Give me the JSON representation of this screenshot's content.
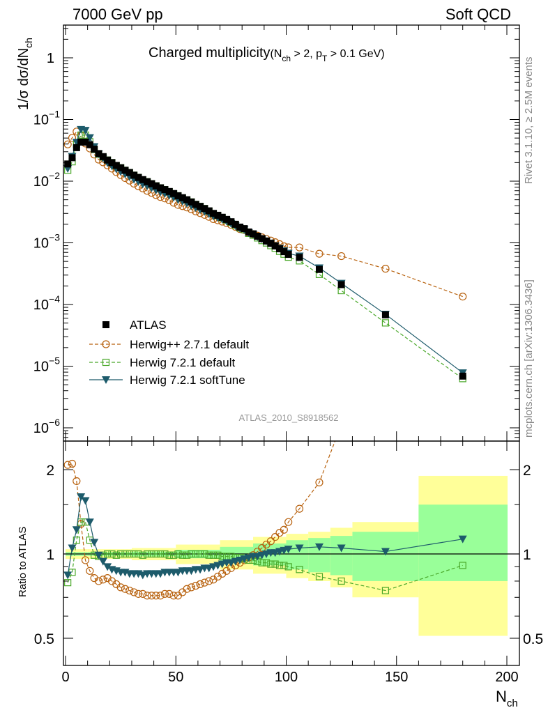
{
  "header": {
    "left": "7000 GeV pp",
    "right": "Soft QCD"
  },
  "side": {
    "rivet": "Rivet 3.1.10, ≥ 2.5M events",
    "mcplots": "mcplots.cern.ch [arXiv:1306.3436]"
  },
  "plot": {
    "title_main": "Charged multiplicity",
    "title_cond_a": "(N",
    "title_cond_a_sub": "ch",
    "title_cond_b": " > 2, p",
    "title_cond_b_sub": "T",
    "title_cond_c": " > 0.1 GeV)",
    "ylabel": "1/σ dσ/dN",
    "ylabel_sub": "ch",
    "ratio_ylabel": "Ratio to ATLAS",
    "xlabel": "N",
    "xlabel_sub": "ch",
    "analysis_id": "ATLAS_2010_S8918562",
    "main_yticks": [
      {
        "base": "1",
        "exp": ""
      },
      {
        "base": "10",
        "exp": "−1"
      },
      {
        "base": "10",
        "exp": "−2"
      },
      {
        "base": "10",
        "exp": "−3"
      },
      {
        "base": "10",
        "exp": "−4"
      },
      {
        "base": "10",
        "exp": "−5"
      },
      {
        "base": "10",
        "exp": "−6"
      }
    ],
    "ratio_yticks": [
      "2",
      "1",
      "0.5"
    ],
    "xticks": [
      "0",
      "50",
      "100",
      "150",
      "200"
    ]
  },
  "legend": [
    {
      "label": "ATLAS",
      "color": "#000000",
      "marker": "square-filled"
    },
    {
      "label": "Herwig++ 2.7.1 default",
      "color": "#b8620f",
      "marker": "circle-open"
    },
    {
      "label": "Herwig 7.2.1 default",
      "color": "#4aa82a",
      "marker": "square-open"
    },
    {
      "label": "Herwig 7.2.1 softTune",
      "color": "#1d5b6b",
      "marker": "triangle-down"
    }
  ],
  "chart_data": {
    "type": "scatter",
    "x_range": [
      0,
      200
    ],
    "main_y_range": [
      5e-07,
      3.5
    ],
    "main_y_log": true,
    "ratio_y_range": [
      0.4,
      2.4
    ],
    "ratio_y_log": true,
    "bands": {
      "color_outer": "#ffff99",
      "color_inner": "#99ff99",
      "bins": [
        {
          "x0": 0,
          "x1": 10,
          "inner": 0.015,
          "outer": 0.04
        },
        {
          "x0": 10,
          "x1": 30,
          "inner": 0.015,
          "outer": 0.04
        },
        {
          "x0": 30,
          "x1": 50,
          "inner": 0.02,
          "outer": 0.05
        },
        {
          "x0": 50,
          "x1": 70,
          "inner": 0.035,
          "outer": 0.08
        },
        {
          "x0": 70,
          "x1": 85,
          "inner": 0.06,
          "outer": 0.12
        },
        {
          "x0": 85,
          "x1": 100,
          "inner": 0.09,
          "outer": 0.15
        },
        {
          "x0": 100,
          "x1": 110,
          "inner": 0.12,
          "outer": 0.18
        },
        {
          "x0": 110,
          "x1": 120,
          "inner": 0.14,
          "outer": 0.2
        },
        {
          "x0": 120,
          "x1": 130,
          "inner": 0.16,
          "outer": 0.24
        },
        {
          "x0": 130,
          "x1": 160,
          "inner": 0.2,
          "outer": 0.3
        },
        {
          "x0": 160,
          "x1": 201,
          "inner": 0.2,
          "outer": 0.49,
          "outer_hi": 0.9,
          "inner_hi": 0.5
        }
      ]
    },
    "series": [
      {
        "name": "ATLAS",
        "x": [
          1,
          3,
          5,
          7,
          9,
          11,
          13,
          15,
          17,
          19,
          21,
          23,
          25,
          27,
          29,
          31,
          33,
          35,
          37,
          39,
          41,
          43,
          45,
          47,
          49,
          51,
          53,
          55,
          57,
          59,
          61,
          63,
          65,
          67,
          69,
          71,
          73,
          75,
          77,
          79,
          81,
          83,
          85,
          87,
          89,
          91,
          93,
          95,
          97,
          99,
          101,
          106,
          115,
          125,
          145,
          180
        ],
        "y": [
          0.019,
          0.024,
          0.035,
          0.043,
          0.043,
          0.039,
          0.033,
          0.028,
          0.025,
          0.022,
          0.02,
          0.018,
          0.0165,
          0.015,
          0.0138,
          0.0125,
          0.0115,
          0.0106,
          0.0098,
          0.0091,
          0.0084,
          0.0078,
          0.0073,
          0.0068,
          0.0063,
          0.0058,
          0.0054,
          0.005,
          0.0046,
          0.0042,
          0.0039,
          0.0036,
          0.0033,
          0.003,
          0.0028,
          0.0026,
          0.0024,
          0.0022,
          0.002,
          0.0018,
          0.0017,
          0.0015,
          0.0014,
          0.00128,
          0.00117,
          0.00107,
          0.00098,
          0.00089,
          0.0008,
          0.00072,
          0.00065,
          0.00058,
          0.00037,
          0.00021,
          6.8e-05,
          6.9e-06
        ]
      },
      {
        "name": "Herwig++ 2.7.1 default",
        "x": [
          1,
          3,
          5,
          7,
          9,
          11,
          13,
          15,
          17,
          19,
          21,
          23,
          25,
          27,
          29,
          31,
          33,
          35,
          37,
          39,
          41,
          43,
          45,
          47,
          49,
          51,
          53,
          55,
          57,
          59,
          61,
          63,
          65,
          67,
          69,
          71,
          73,
          75,
          77,
          79,
          81,
          83,
          85,
          87,
          89,
          91,
          93,
          95,
          97,
          99,
          101,
          106,
          115,
          125,
          145,
          180
        ],
        "ratio": [
          2.08,
          2.1,
          1.82,
          1.28,
          0.95,
          0.87,
          0.82,
          0.8,
          0.81,
          0.82,
          0.8,
          0.78,
          0.76,
          0.75,
          0.74,
          0.73,
          0.72,
          0.72,
          0.71,
          0.71,
          0.71,
          0.71,
          0.72,
          0.72,
          0.71,
          0.71,
          0.73,
          0.75,
          0.76,
          0.77,
          0.78,
          0.79,
          0.8,
          0.81,
          0.83,
          0.85,
          0.87,
          0.89,
          0.91,
          0.93,
          0.95,
          0.97,
          0.99,
          1.02,
          1.05,
          1.08,
          1.11,
          1.15,
          1.19,
          1.22,
          1.3,
          1.45,
          1.8,
          2.9,
          5.6,
          19.5
        ]
      },
      {
        "name": "Herwig 7.2.1 default",
        "x": [
          1,
          3,
          5,
          7,
          9,
          11,
          13,
          15,
          17,
          19,
          21,
          23,
          25,
          27,
          29,
          31,
          33,
          35,
          37,
          39,
          41,
          43,
          45,
          47,
          49,
          51,
          53,
          55,
          57,
          59,
          61,
          63,
          65,
          67,
          69,
          71,
          73,
          75,
          77,
          79,
          81,
          83,
          85,
          87,
          89,
          91,
          93,
          95,
          97,
          99,
          101,
          106,
          115,
          125,
          145,
          180
        ],
        "ratio": [
          0.79,
          0.86,
          1.12,
          1.3,
          1.3,
          1.12,
          0.99,
          0.98,
          0.99,
          1.0,
          1.0,
          0.99,
          1.0,
          1.0,
          1.0,
          1.0,
          1.0,
          0.99,
          1.0,
          1.0,
          1.0,
          1.0,
          1.0,
          0.99,
          0.99,
          1.0,
          0.99,
          0.99,
          1.0,
          1.0,
          1.0,
          1.0,
          0.99,
          0.99,
          0.99,
          0.98,
          0.98,
          0.98,
          0.97,
          0.97,
          0.96,
          0.95,
          0.95,
          0.94,
          0.93,
          0.93,
          0.92,
          0.92,
          0.91,
          0.91,
          0.9,
          0.88,
          0.83,
          0.8,
          0.74,
          0.91
        ]
      },
      {
        "name": "Herwig 7.2.1 softTune",
        "x": [
          1,
          3,
          5,
          7,
          9,
          11,
          13,
          15,
          17,
          19,
          21,
          23,
          25,
          27,
          29,
          31,
          33,
          35,
          37,
          39,
          41,
          43,
          45,
          47,
          49,
          51,
          53,
          55,
          57,
          59,
          61,
          63,
          65,
          67,
          69,
          71,
          73,
          75,
          77,
          79,
          81,
          83,
          85,
          87,
          89,
          91,
          93,
          95,
          97,
          99,
          101,
          106,
          115,
          125,
          145,
          180
        ],
        "ratio": [
          0.84,
          1.05,
          1.22,
          1.6,
          1.55,
          1.3,
          1.1,
          0.99,
          0.94,
          0.9,
          0.88,
          0.87,
          0.86,
          0.86,
          0.85,
          0.85,
          0.85,
          0.84,
          0.85,
          0.85,
          0.85,
          0.85,
          0.86,
          0.86,
          0.86,
          0.86,
          0.87,
          0.87,
          0.87,
          0.88,
          0.88,
          0.89,
          0.89,
          0.9,
          0.91,
          0.92,
          0.93,
          0.93,
          0.94,
          0.95,
          0.96,
          0.97,
          0.98,
          0.98,
          0.99,
          1.0,
          1.01,
          1.01,
          1.02,
          1.03,
          1.04,
          1.05,
          1.06,
          1.05,
          1.02,
          1.13
        ]
      }
    ]
  }
}
